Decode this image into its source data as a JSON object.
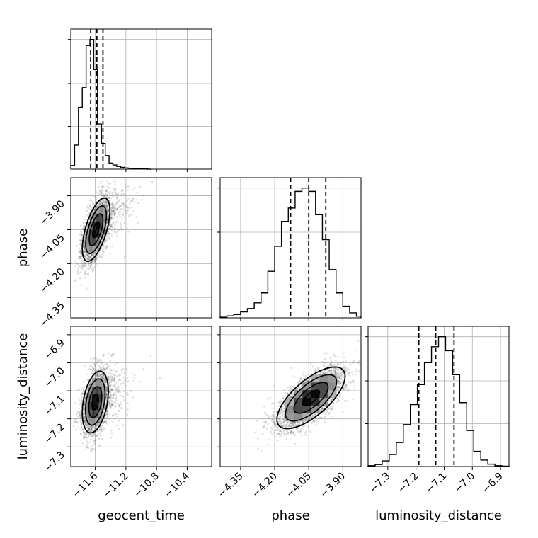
{
  "chart_data": {
    "type": "corner",
    "grid": true,
    "parameters": [
      {
        "name": "geocent_time",
        "label": "geocent_time",
        "range": [
          -11.92,
          -10.08
        ],
        "ticks": [
          -11.6,
          -11.2,
          -10.8,
          -10.4
        ],
        "tick_labels": [
          "−11.6",
          "−11.2",
          "−10.8",
          "−10.4"
        ],
        "quantiles": [
          -11.66,
          -11.58,
          -11.5
        ],
        "peak": -11.59
      },
      {
        "name": "phase",
        "label": "phase",
        "range": [
          -4.44,
          -3.82
        ],
        "ticks": [
          -4.35,
          -4.2,
          -4.05,
          -3.9
        ],
        "tick_labels": [
          "−4.35",
          "−4.20",
          "−4.05",
          "−3.90"
        ],
        "quantiles": [
          -4.13,
          -4.05,
          -3.975
        ],
        "peak": -4.05
      },
      {
        "name": "luminosity_distance",
        "label": "luminosity_distance",
        "range": [
          -7.37,
          -6.87
        ],
        "ticks": [
          -7.3,
          -7.2,
          -7.1,
          -7.0,
          -6.9
        ],
        "tick_labels": [
          "−7.3",
          "−7.2",
          "−7.1",
          "−7.0",
          "−6.9"
        ],
        "quantiles": [
          -7.19,
          -7.13,
          -7.065
        ],
        "peak": -7.13
      }
    ],
    "histograms": [
      {
        "param": "geocent_time",
        "bin_edges": [
          -11.92,
          -11.87,
          -11.82,
          -11.77,
          -11.72,
          -11.67,
          -11.62,
          -11.57,
          -11.52,
          -11.47,
          -11.42,
          -11.37,
          -11.32,
          -11.27,
          -11.22,
          -11.17,
          -11.12,
          -11.07,
          -11.02,
          -10.97,
          -10.92,
          -10.87
        ],
        "counts": [
          12,
          80,
          205,
          270,
          410,
          430,
          330,
          150,
          85,
          45,
          20,
          14,
          9,
          6,
          4,
          3,
          2,
          2,
          1,
          1,
          0
        ]
      },
      {
        "param": "phase",
        "bin_edges": [
          -4.44,
          -4.41,
          -4.38,
          -4.35,
          -4.32,
          -4.29,
          -4.26,
          -4.23,
          -4.2,
          -4.17,
          -4.14,
          -4.11,
          -4.08,
          -4.05,
          -4.02,
          -3.99,
          -3.96,
          -3.93,
          -3.9,
          -3.87,
          -3.84,
          -3.82
        ],
        "counts": [
          2,
          6,
          10,
          18,
          28,
          45,
          75,
          140,
          215,
          290,
          330,
          380,
          390,
          380,
          310,
          235,
          145,
          75,
          35,
          15,
          5
        ]
      },
      {
        "param": "luminosity_distance",
        "bin_edges": [
          -7.37,
          -7.345,
          -7.32,
          -7.295,
          -7.27,
          -7.245,
          -7.22,
          -7.195,
          -7.17,
          -7.145,
          -7.12,
          -7.095,
          -7.07,
          -7.045,
          -7.02,
          -6.995,
          -6.97,
          -6.945,
          -6.92,
          -6.895,
          -6.87
        ],
        "counts": [
          2,
          5,
          14,
          30,
          60,
          105,
          155,
          205,
          260,
          300,
          325,
          290,
          230,
          160,
          90,
          38,
          16,
          6,
          2,
          1
        ]
      }
    ],
    "panels": [
      {
        "row": 1,
        "col": 0,
        "x": "geocent_time",
        "y": "phase",
        "x_center": -11.59,
        "y_center": -4.05,
        "sx": 0.09,
        "sy": 0.07,
        "rho": 0.6
      },
      {
        "row": 2,
        "col": 0,
        "x": "geocent_time",
        "y": "luminosity_distance",
        "x_center": -11.6,
        "y_center": -7.14,
        "sx": 0.085,
        "sy": 0.055,
        "rho": 0.35
      },
      {
        "row": 2,
        "col": 1,
        "x": "phase",
        "y": "luminosity_distance",
        "x_center": -4.04,
        "y_center": -7.125,
        "sx": 0.075,
        "sy": 0.055,
        "rho": 0.7
      }
    ],
    "contour_sigmas": [
      0.5,
      1.0,
      1.5,
      2.0
    ]
  }
}
